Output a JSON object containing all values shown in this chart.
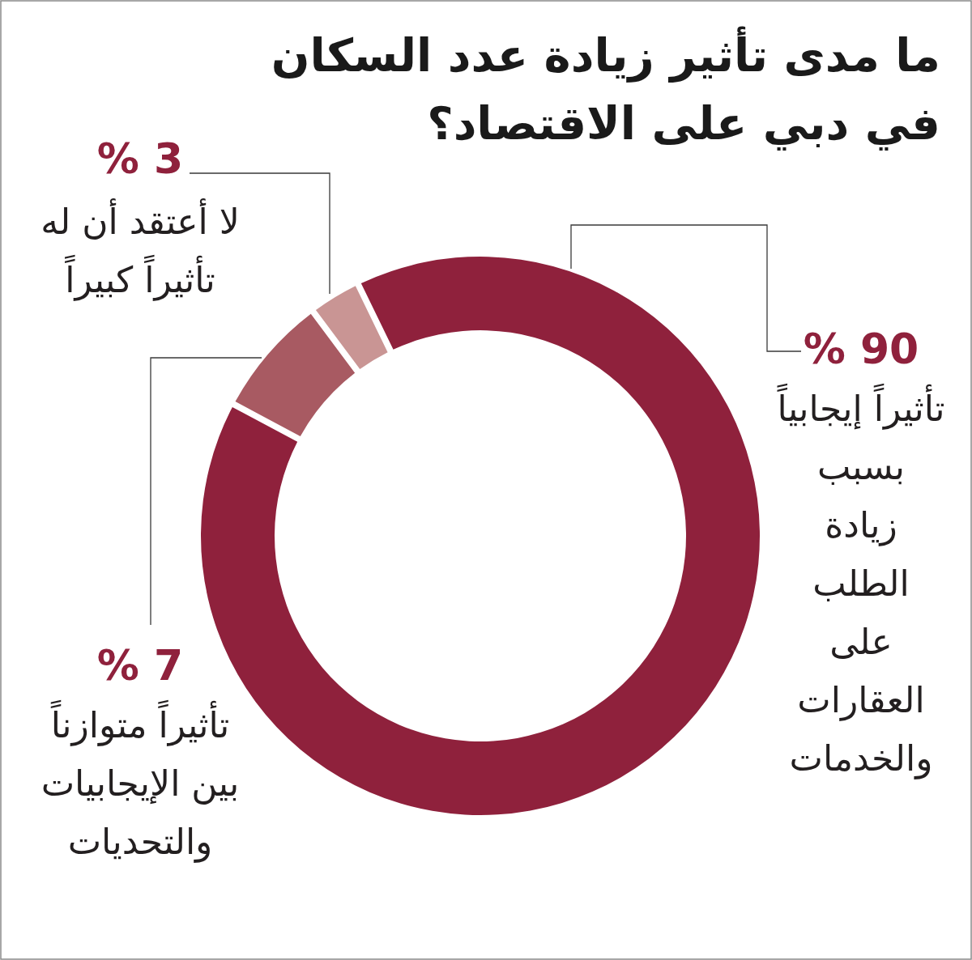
{
  "chart_data": {
    "type": "donut",
    "title": "ما مدى تأثير زيادة عدد السكان\nفي دبي على الاقتصاد؟",
    "categories": [
      "تأثيراً إيجابياً\nبسبب\nزيادة\nالطلب\nعلى\nالعقارات\nوالخدمات",
      "تأثيراً متوازناً\nبين الإيجابيات\nوالتحديات",
      "لا أعتقد أن له\nتأثيراً كبيراً"
    ],
    "values": [
      90,
      7,
      3
    ],
    "colors": [
      "#8f213c",
      "#a85a62",
      "#c99594"
    ],
    "value_labels": [
      "% 90",
      "% 7",
      "% 3"
    ]
  }
}
